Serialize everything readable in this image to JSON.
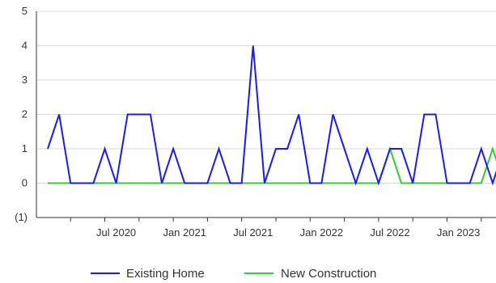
{
  "chart_data": {
    "type": "line",
    "ylim": [
      -1,
      5
    ],
    "y_ticks": [
      {
        "value": 5,
        "label": "5"
      },
      {
        "value": 4,
        "label": "4"
      },
      {
        "value": 3,
        "label": "3"
      },
      {
        "value": 2,
        "label": "2"
      },
      {
        "value": 1,
        "label": "1"
      },
      {
        "value": 0,
        "label": "0"
      },
      {
        "value": -1,
        "label": "(1)"
      }
    ],
    "x_tick_labels": [
      "Jul 2020",
      "Jan 2021",
      "Jul 2021",
      "Jan 2022",
      "Jul 2022",
      "Jan 2023"
    ],
    "x": [
      "2020-01",
      "2020-02",
      "2020-03",
      "2020-04",
      "2020-05",
      "2020-06",
      "2020-07",
      "2020-08",
      "2020-09",
      "2020-10",
      "2020-11",
      "2020-12",
      "2021-01",
      "2021-02",
      "2021-03",
      "2021-04",
      "2021-05",
      "2021-06",
      "2021-07",
      "2021-08",
      "2021-09",
      "2021-10",
      "2021-11",
      "2021-12",
      "2022-01",
      "2022-02",
      "2022-03",
      "2022-04",
      "2022-05",
      "2022-06",
      "2022-07",
      "2022-08",
      "2022-09",
      "2022-10",
      "2022-11",
      "2022-12",
      "2023-01",
      "2023-02",
      "2023-03",
      "2023-04",
      "2023-05"
    ],
    "series": [
      {
        "name": "Existing Home",
        "color": "#1a1aff",
        "values": [
          1,
          2,
          0,
          0,
          0,
          1,
          0,
          2,
          2,
          2,
          0,
          1,
          0,
          0,
          0,
          1,
          0,
          0,
          4,
          0,
          1,
          1,
          2,
          0,
          0,
          2,
          1,
          0,
          1,
          0,
          1,
          1,
          0,
          2,
          2,
          0,
          0,
          0,
          1,
          0,
          1
        ]
      },
      {
        "name": "New Construction",
        "color": "#33cc33",
        "values": [
          0,
          0,
          0,
          0,
          0,
          0,
          0,
          0,
          0,
          0,
          0,
          0,
          0,
          0,
          0,
          0,
          0,
          0,
          0,
          0,
          0,
          0,
          0,
          0,
          0,
          0,
          0,
          0,
          0,
          0,
          1,
          0,
          0,
          0,
          0,
          0,
          0,
          0,
          0,
          1,
          0
        ]
      }
    ],
    "grid": true,
    "legend_position": "bottom"
  }
}
